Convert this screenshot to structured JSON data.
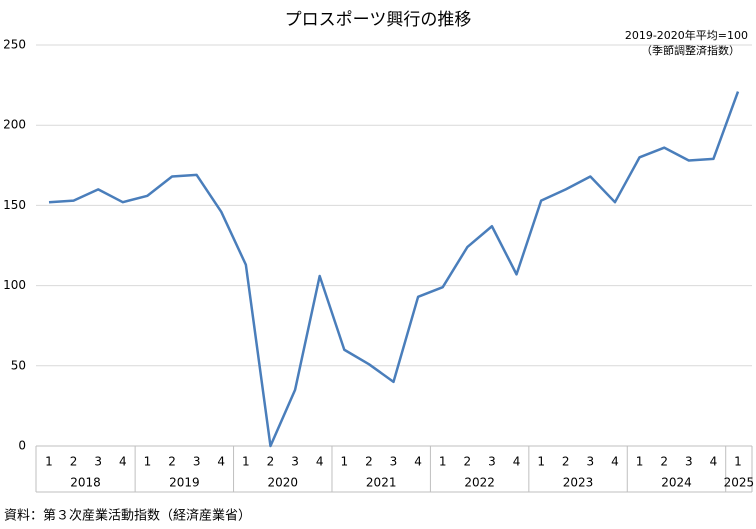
{
  "chart_data": {
    "type": "line",
    "title": "プロスポーツ興行の推移",
    "notes": [
      "2019-2020年平均=100",
      "（季節調整済指数）"
    ],
    "source": "資料：第３次産業活動指数（経済産業省）",
    "groups": [
      {
        "label": "2018",
        "quarters": [
          "1",
          "2",
          "3",
          "4"
        ]
      },
      {
        "label": "2019",
        "quarters": [
          "1",
          "2",
          "3",
          "4"
        ]
      },
      {
        "label": "2020",
        "quarters": [
          "1",
          "2",
          "3",
          "4"
        ]
      },
      {
        "label": "2021",
        "quarters": [
          "1",
          "2",
          "3",
          "4"
        ]
      },
      {
        "label": "2022",
        "quarters": [
          "1",
          "2",
          "3",
          "4"
        ]
      },
      {
        "label": "2023",
        "quarters": [
          "1",
          "2",
          "3",
          "4"
        ]
      },
      {
        "label": "2024",
        "quarters": [
          "1",
          "2",
          "3",
          "4"
        ]
      },
      {
        "label": "2025",
        "quarters": [
          "1"
        ]
      }
    ],
    "values": [
      152,
      153,
      160,
      152,
      156,
      168,
      169,
      146,
      113,
      0,
      35,
      106,
      60,
      51,
      40,
      93,
      99,
      124,
      137,
      107,
      153,
      160,
      168,
      152,
      180,
      186,
      178,
      179,
      221
    ],
    "color": "#4a7ebb",
    "ylim": [
      0,
      250
    ],
    "yticks": [
      0,
      50,
      100,
      150,
      200,
      250
    ],
    "grid": true
  }
}
